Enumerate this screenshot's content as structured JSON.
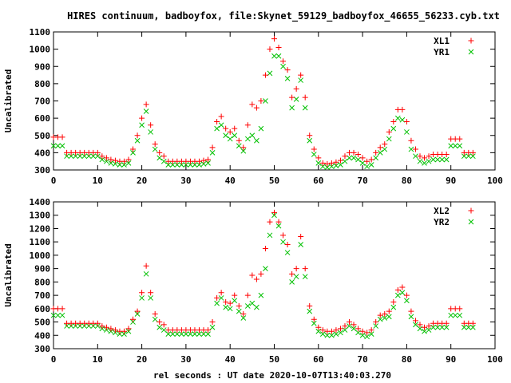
{
  "title": "HIRES continuum, badboyfox, file:Skynet_59129_badboyfox_46655_56233.cyb.txt",
  "xlabel": "rel seconds : UT date 2020-10-07T13:40:03.270",
  "colors": {
    "series_red": "#ff0000",
    "series_green": "#00c000",
    "axis": "#000000"
  },
  "chart_data": [
    {
      "type": "scatter",
      "title": "",
      "xlabel": "",
      "ylabel": "Uncalibrated",
      "xlim": [
        0,
        100
      ],
      "ylim": [
        300,
        1100
      ],
      "xticks": [
        0,
        10,
        20,
        30,
        40,
        50,
        60,
        70,
        80,
        90,
        100
      ],
      "yticks": [
        300,
        400,
        500,
        600,
        700,
        800,
        900,
        1000,
        1100
      ],
      "legend_position": "top-right",
      "markers": {
        "XL1": "plus",
        "YR1": "cross"
      },
      "series": [
        {
          "name": "XL1",
          "x": [
            0,
            1,
            2,
            3,
            4,
            5,
            6,
            7,
            8,
            9,
            10,
            11,
            12,
            13,
            14,
            15,
            16,
            17,
            18,
            19,
            20,
            21,
            22,
            23,
            24,
            25,
            26,
            27,
            28,
            29,
            30,
            31,
            32,
            33,
            34,
            35,
            36,
            37,
            38,
            39,
            40,
            41,
            42,
            43,
            44,
            45,
            46,
            47,
            48,
            49,
            50,
            51,
            52,
            53,
            54,
            55,
            56,
            57,
            58,
            59,
            60,
            61,
            62,
            63,
            64,
            65,
            66,
            67,
            68,
            69,
            70,
            71,
            72,
            73,
            74,
            75,
            76,
            77,
            78,
            79,
            80,
            81,
            82,
            83,
            84,
            85,
            86,
            87,
            88,
            89,
            90,
            91,
            92,
            93,
            94,
            95
          ],
          "y": [
            490,
            490,
            490,
            400,
            400,
            400,
            400,
            400,
            400,
            400,
            400,
            380,
            370,
            360,
            355,
            350,
            350,
            360,
            420,
            500,
            600,
            680,
            560,
            450,
            400,
            380,
            350,
            350,
            350,
            350,
            350,
            350,
            350,
            350,
            355,
            360,
            430,
            580,
            610,
            540,
            520,
            540,
            470,
            430,
            560,
            680,
            660,
            700,
            850,
            1000,
            1060,
            1010,
            930,
            880,
            720,
            770,
            850,
            720,
            500,
            420,
            370,
            340,
            335,
            340,
            345,
            355,
            380,
            400,
            400,
            390,
            370,
            350,
            360,
            400,
            430,
            450,
            520,
            580,
            650,
            650,
            580,
            470,
            420,
            380,
            370,
            380,
            390,
            390,
            390,
            390,
            480,
            480,
            480,
            400,
            400,
            400
          ]
        },
        {
          "name": "YR1",
          "x": [
            0,
            1,
            2,
            3,
            4,
            5,
            6,
            7,
            8,
            9,
            10,
            11,
            12,
            13,
            14,
            15,
            16,
            17,
            18,
            19,
            20,
            21,
            22,
            23,
            24,
            25,
            26,
            27,
            28,
            29,
            30,
            31,
            32,
            33,
            34,
            35,
            36,
            37,
            38,
            39,
            40,
            41,
            42,
            43,
            44,
            45,
            46,
            47,
            48,
            49,
            50,
            51,
            52,
            53,
            54,
            55,
            56,
            57,
            58,
            59,
            60,
            61,
            62,
            63,
            64,
            65,
            66,
            67,
            68,
            69,
            70,
            71,
            72,
            73,
            74,
            75,
            76,
            77,
            78,
            79,
            80,
            81,
            82,
            83,
            84,
            85,
            86,
            87,
            88,
            89,
            90,
            91,
            92,
            93,
            94,
            95
          ],
          "y": [
            440,
            440,
            440,
            380,
            380,
            380,
            380,
            380,
            380,
            380,
            380,
            360,
            350,
            340,
            335,
            330,
            330,
            340,
            400,
            470,
            560,
            640,
            520,
            420,
            370,
            350,
            330,
            330,
            330,
            330,
            330,
            330,
            330,
            330,
            335,
            340,
            400,
            540,
            560,
            500,
            480,
            500,
            440,
            410,
            480,
            500,
            470,
            540,
            700,
            860,
            960,
            960,
            900,
            830,
            660,
            710,
            820,
            660,
            470,
            390,
            340,
            320,
            315,
            320,
            325,
            330,
            350,
            370,
            370,
            360,
            340,
            320,
            330,
            370,
            400,
            420,
            480,
            540,
            600,
            590,
            520,
            420,
            380,
            350,
            340,
            350,
            360,
            360,
            360,
            360,
            440,
            440,
            440,
            380,
            380,
            380
          ]
        }
      ]
    },
    {
      "type": "scatter",
      "title": "",
      "xlabel": "rel seconds : UT date 2020-10-07T13:40:03.270",
      "ylabel": "Uncalibrated",
      "xlim": [
        0,
        100
      ],
      "ylim": [
        300,
        1400
      ],
      "xticks": [
        0,
        10,
        20,
        30,
        40,
        50,
        60,
        70,
        80,
        90,
        100
      ],
      "yticks": [
        300,
        400,
        500,
        600,
        700,
        800,
        900,
        1000,
        1100,
        1200,
        1300,
        1400
      ],
      "legend_position": "top-right",
      "markers": {
        "XL2": "plus",
        "YR2": "cross"
      },
      "series": [
        {
          "name": "XL2",
          "x": [
            0,
            1,
            2,
            3,
            4,
            5,
            6,
            7,
            8,
            9,
            10,
            11,
            12,
            13,
            14,
            15,
            16,
            17,
            18,
            19,
            20,
            21,
            22,
            23,
            24,
            25,
            26,
            27,
            28,
            29,
            30,
            31,
            32,
            33,
            34,
            35,
            36,
            37,
            38,
            39,
            40,
            41,
            42,
            43,
            44,
            45,
            46,
            47,
            48,
            49,
            50,
            51,
            52,
            53,
            54,
            55,
            56,
            57,
            58,
            59,
            60,
            61,
            62,
            63,
            64,
            65,
            66,
            67,
            68,
            69,
            70,
            71,
            72,
            73,
            74,
            75,
            76,
            77,
            78,
            79,
            80,
            81,
            82,
            83,
            84,
            85,
            86,
            87,
            88,
            89,
            90,
            91,
            92,
            93,
            94,
            95
          ],
          "y": [
            600,
            600,
            600,
            490,
            490,
            490,
            490,
            490,
            490,
            490,
            490,
            470,
            460,
            450,
            440,
            430,
            430,
            450,
            520,
            580,
            720,
            920,
            720,
            560,
            500,
            480,
            440,
            440,
            440,
            440,
            440,
            440,
            440,
            440,
            440,
            440,
            500,
            680,
            720,
            650,
            640,
            700,
            620,
            560,
            700,
            850,
            820,
            860,
            1050,
            1250,
            1320,
            1250,
            1150,
            1080,
            860,
            900,
            1140,
            900,
            620,
            520,
            460,
            440,
            430,
            430,
            440,
            450,
            470,
            500,
            480,
            450,
            430,
            420,
            440,
            500,
            550,
            560,
            580,
            650,
            740,
            760,
            700,
            580,
            510,
            480,
            460,
            470,
            490,
            490,
            490,
            490,
            600,
            600,
            600,
            490,
            490,
            490
          ]
        },
        {
          "name": "YR2",
          "x": [
            0,
            1,
            2,
            3,
            4,
            5,
            6,
            7,
            8,
            9,
            10,
            11,
            12,
            13,
            14,
            15,
            16,
            17,
            18,
            19,
            20,
            21,
            22,
            23,
            24,
            25,
            26,
            27,
            28,
            29,
            30,
            31,
            32,
            33,
            34,
            35,
            36,
            37,
            38,
            39,
            40,
            41,
            42,
            43,
            44,
            45,
            46,
            47,
            48,
            49,
            50,
            51,
            52,
            53,
            54,
            55,
            56,
            57,
            58,
            59,
            60,
            61,
            62,
            63,
            64,
            65,
            66,
            67,
            68,
            69,
            70,
            71,
            72,
            73,
            74,
            75,
            76,
            77,
            78,
            79,
            80,
            81,
            82,
            83,
            84,
            85,
            86,
            87,
            88,
            89,
            90,
            91,
            92,
            93,
            94,
            95
          ],
          "y": [
            550,
            550,
            550,
            470,
            470,
            470,
            470,
            470,
            470,
            470,
            470,
            450,
            440,
            430,
            420,
            410,
            410,
            430,
            500,
            560,
            680,
            860,
            680,
            520,
            460,
            440,
            410,
            410,
            410,
            410,
            410,
            410,
            410,
            410,
            410,
            410,
            460,
            640,
            680,
            610,
            600,
            660,
            580,
            530,
            620,
            640,
            610,
            700,
            900,
            1150,
            1300,
            1220,
            1100,
            1020,
            800,
            840,
            1080,
            840,
            580,
            490,
            430,
            410,
            400,
            400,
            410,
            420,
            440,
            470,
            450,
            420,
            400,
            390,
            410,
            470,
            520,
            530,
            540,
            610,
            700,
            720,
            660,
            540,
            480,
            450,
            430,
            440,
            460,
            460,
            460,
            460,
            550,
            550,
            550,
            460,
            460,
            460
          ]
        }
      ]
    }
  ]
}
